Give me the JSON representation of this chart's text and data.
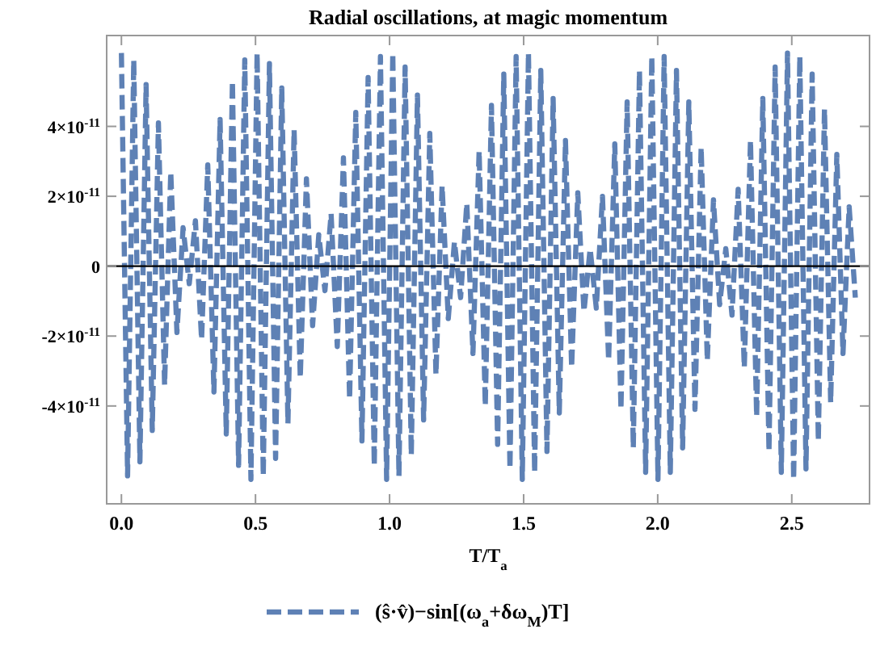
{
  "chart_data": {
    "type": "line",
    "title": "Radial oscillations, at magic momentum",
    "xlabel": "T/T$_{a}$",
    "xlim": [
      -0.055,
      2.79
    ],
    "ylim": [
      -6.8e-11,
      6.6e-11
    ],
    "xticks": [
      {
        "value": 0,
        "label": "0.0"
      },
      0.5,
      {
        "value": 1,
        "label": "1.0"
      },
      1.5,
      {
        "value": 2,
        "label": "2.0"
      },
      2.5
    ],
    "yticks": [
      {
        "value": -4e-11,
        "label": "-4×10$^{-11}$"
      },
      {
        "value": -2e-11,
        "label": "-2×10$^{-11}$"
      },
      0,
      {
        "value": 2e-11,
        "label": "2×10$^{-11}$"
      },
      {
        "value": 4e-11,
        "label": "4×10$^{-11}$"
      }
    ],
    "grid": false,
    "legend": "bottom",
    "line_style": "dashed",
    "ref_lines": [
      {
        "axis": "y",
        "value": 0,
        "color": "#000000"
      }
    ],
    "series": [
      {
        "name": "(ŝ·v̂)−sin[(ω$_{a}$+δω$_{M}$)T]",
        "color": "#5e81b5",
        "x": [
          0,
          0.023,
          0.046,
          0.069,
          0.092,
          0.115,
          0.138,
          0.161,
          0.184,
          0.207,
          0.23,
          0.253,
          0.276,
          0.299,
          0.322,
          0.345,
          0.368,
          0.391,
          0.414,
          0.437,
          0.46,
          0.483,
          0.506,
          0.529,
          0.552,
          0.575,
          0.598,
          0.621,
          0.644,
          0.667,
          0.69,
          0.713,
          0.736,
          0.759,
          0.782,
          0.805,
          0.828,
          0.851,
          0.874,
          0.897,
          0.92,
          0.943,
          0.966,
          0.989,
          1.012,
          1.035,
          1.058,
          1.081,
          1.104,
          1.127,
          1.15,
          1.173,
          1.196,
          1.219,
          1.242,
          1.265,
          1.288,
          1.311,
          1.334,
          1.357,
          1.38,
          1.403,
          1.426,
          1.449,
          1.472,
          1.495,
          1.518,
          1.541,
          1.564,
          1.587,
          1.61,
          1.633,
          1.656,
          1.679,
          1.702,
          1.725,
          1.748,
          1.771,
          1.794,
          1.817,
          1.84,
          1.863,
          1.886,
          1.909,
          1.932,
          1.955,
          1.978,
          2.001,
          2.024,
          2.047,
          2.07,
          2.093,
          2.116,
          2.139,
          2.162,
          2.185,
          2.208,
          2.231,
          2.254,
          2.277,
          2.3,
          2.323,
          2.346,
          2.369,
          2.392,
          2.415,
          2.438,
          2.461,
          2.484,
          2.507,
          2.53,
          2.553,
          2.576,
          2.599,
          2.622,
          2.645,
          2.668,
          2.691,
          2.714,
          2.737
        ],
        "values": [
          6.1e-11,
          -6e-11,
          5.9e-11,
          -5.6e-11,
          5.2e-11,
          -4.7e-11,
          4.1e-11,
          -3.4e-11,
          2.7e-11,
          -1.9e-11,
          1.1e-11,
          -5e-12,
          1.3e-11,
          -2.1e-11,
          2.9e-11,
          -3.6e-11,
          4.2e-11,
          -4.8e-11,
          5.3e-11,
          -5.7e-11,
          5.9e-11,
          -6.1e-11,
          6.1e-11,
          -6e-11,
          5.8e-11,
          -5.5e-11,
          5.1e-11,
          -4.5e-11,
          3.9e-11,
          -3.2e-11,
          2.5e-11,
          -1.7e-11,
          9e-12,
          -7e-12,
          1.5e-11,
          -2.3e-11,
          3.1e-11,
          -3.8e-11,
          4.4e-11,
          -5e-11,
          5.4e-11,
          -5.7e-11,
          6e-11,
          -6.1e-11,
          6.1e-11,
          -6e-11,
          5.7e-11,
          -5.4e-11,
          4.9e-11,
          -4.4e-11,
          3.8e-11,
          -3.1e-11,
          2.3e-11,
          -1.5e-11,
          7e-12,
          -9e-12,
          1.8e-11,
          -2.5e-11,
          3.3e-11,
          -4e-11,
          4.6e-11,
          -5.1e-11,
          5.5e-11,
          -5.8e-11,
          6e-11,
          -6.1e-11,
          6.1e-11,
          -5.9e-11,
          5.6e-11,
          -5.3e-11,
          4.8e-11,
          -4.2e-11,
          3.6e-11,
          -2.9e-11,
          2.1e-11,
          -1.3e-11,
          5e-12,
          -1.2e-11,
          2e-11,
          -2.7e-11,
          3.5e-11,
          -4.1e-11,
          4.7e-11,
          -5.2e-11,
          5.6e-11,
          -5.9e-11,
          6e-11,
          -6.1e-11,
          6e-11,
          -5.9e-11,
          5.6e-11,
          -5.2e-11,
          4.7e-11,
          -4.1e-11,
          3.4e-11,
          -2.7e-11,
          1.9e-11,
          -1.1e-11,
          5e-12,
          -1.4e-11,
          2.2e-11,
          -2.9e-11,
          3.6e-11,
          -4.3e-11,
          4.8e-11,
          -5.3e-11,
          5.7e-11,
          -5.9e-11,
          6.1e-11,
          -6.1e-11,
          6e-11,
          -5.8e-11,
          5.5e-11,
          -5e-11,
          4.5e-11,
          -3.9e-11,
          3.2e-11,
          -2.5e-11,
          1.7e-11,
          -9e-12
        ]
      }
    ]
  }
}
